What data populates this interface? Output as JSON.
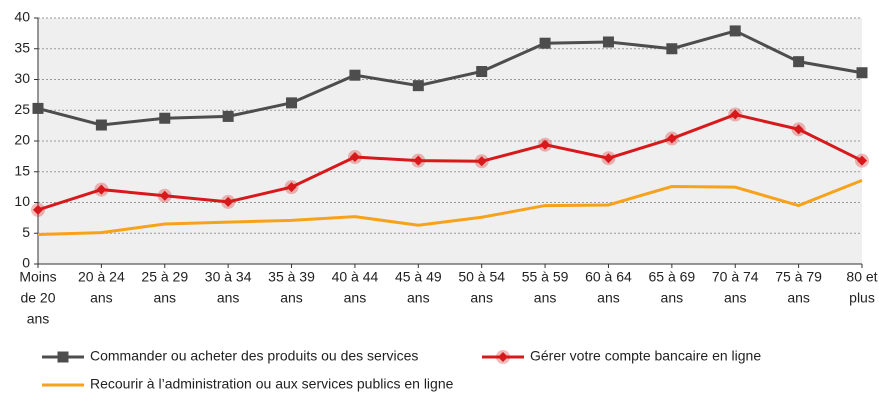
{
  "chart_data": {
    "type": "line",
    "categories": [
      [
        "Moins",
        "de 20",
        "ans"
      ],
      [
        "20 à 24",
        "ans"
      ],
      [
        "25 à 29",
        "ans"
      ],
      [
        "30 à 34",
        "ans"
      ],
      [
        "35 à 39",
        "ans"
      ],
      [
        "40 à 44",
        "ans"
      ],
      [
        "45 à 49",
        "ans"
      ],
      [
        "50 à 54",
        "ans"
      ],
      [
        "55 à 59",
        "ans"
      ],
      [
        "60 à 64",
        "ans"
      ],
      [
        "65 à 69",
        "ans"
      ],
      [
        "70 à 74",
        "ans"
      ],
      [
        "75 à 79",
        "ans"
      ],
      [
        "80 et",
        "plus"
      ]
    ],
    "series": [
      {
        "name": "Commander ou acheter des produits ou des services",
        "color": "#4d4d4d",
        "marker": "square",
        "values": [
          25.3,
          22.6,
          23.7,
          24.0,
          26.2,
          30.7,
          29.0,
          31.3,
          35.9,
          36.1,
          35.0,
          37.9,
          32.9,
          31.1
        ]
      },
      {
        "name": "Gérer votre compte bancaire en ligne",
        "color": "#d7191c",
        "marker": "diamond",
        "values": [
          8.8,
          12.1,
          11.1,
          10.1,
          12.5,
          17.4,
          16.8,
          16.7,
          19.4,
          17.2,
          20.4,
          24.3,
          21.9,
          16.8
        ]
      },
      {
        "name": "Recourir à l’administration ou aux services publics en ligne",
        "color": "#f7a21b",
        "marker": "none",
        "values": [
          4.8,
          5.1,
          6.5,
          6.8,
          7.1,
          7.7,
          6.3,
          7.6,
          9.5,
          9.6,
          12.6,
          12.5,
          9.5,
          13.6
        ]
      }
    ],
    "ylim": [
      0,
      40
    ],
    "yticks": [
      0,
      5,
      10,
      15,
      20,
      25,
      30,
      35,
      40
    ],
    "grid": true
  }
}
